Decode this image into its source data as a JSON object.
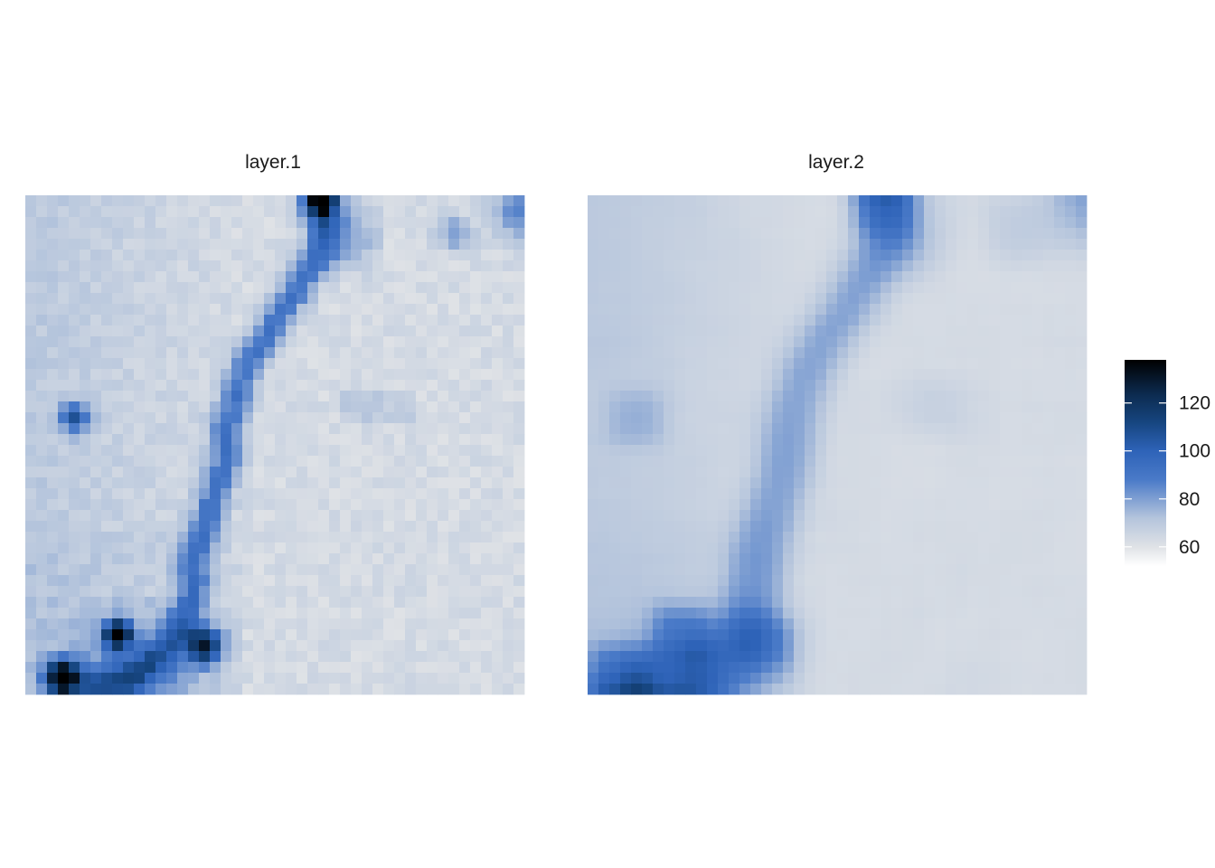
{
  "chart_data": {
    "type": "heatmap",
    "grid": {
      "rows": 46,
      "cols": 46
    },
    "legend": {
      "placement": "right",
      "ticks": [
        60,
        80,
        100,
        120
      ],
      "tick_labels": [
        "60",
        "80",
        "100",
        "120"
      ],
      "range": [
        52,
        138
      ]
    },
    "color_scale": {
      "stops": [
        {
          "value": 52,
          "color": "#ffffff"
        },
        {
          "value": 60,
          "color": "#dfe2e6"
        },
        {
          "value": 72,
          "color": "#b4c4dc"
        },
        {
          "value": 88,
          "color": "#4a7ac8"
        },
        {
          "value": 100,
          "color": "#2e63b8"
        },
        {
          "value": 112,
          "color": "#16457f"
        },
        {
          "value": 124,
          "color": "#0c2a4e"
        },
        {
          "value": 138,
          "color": "#000000"
        }
      ]
    },
    "panels": [
      {
        "title": "layer.1",
        "smoothing": 0
      },
      {
        "title": "layer.2",
        "smoothing": 2
      }
    ]
  }
}
